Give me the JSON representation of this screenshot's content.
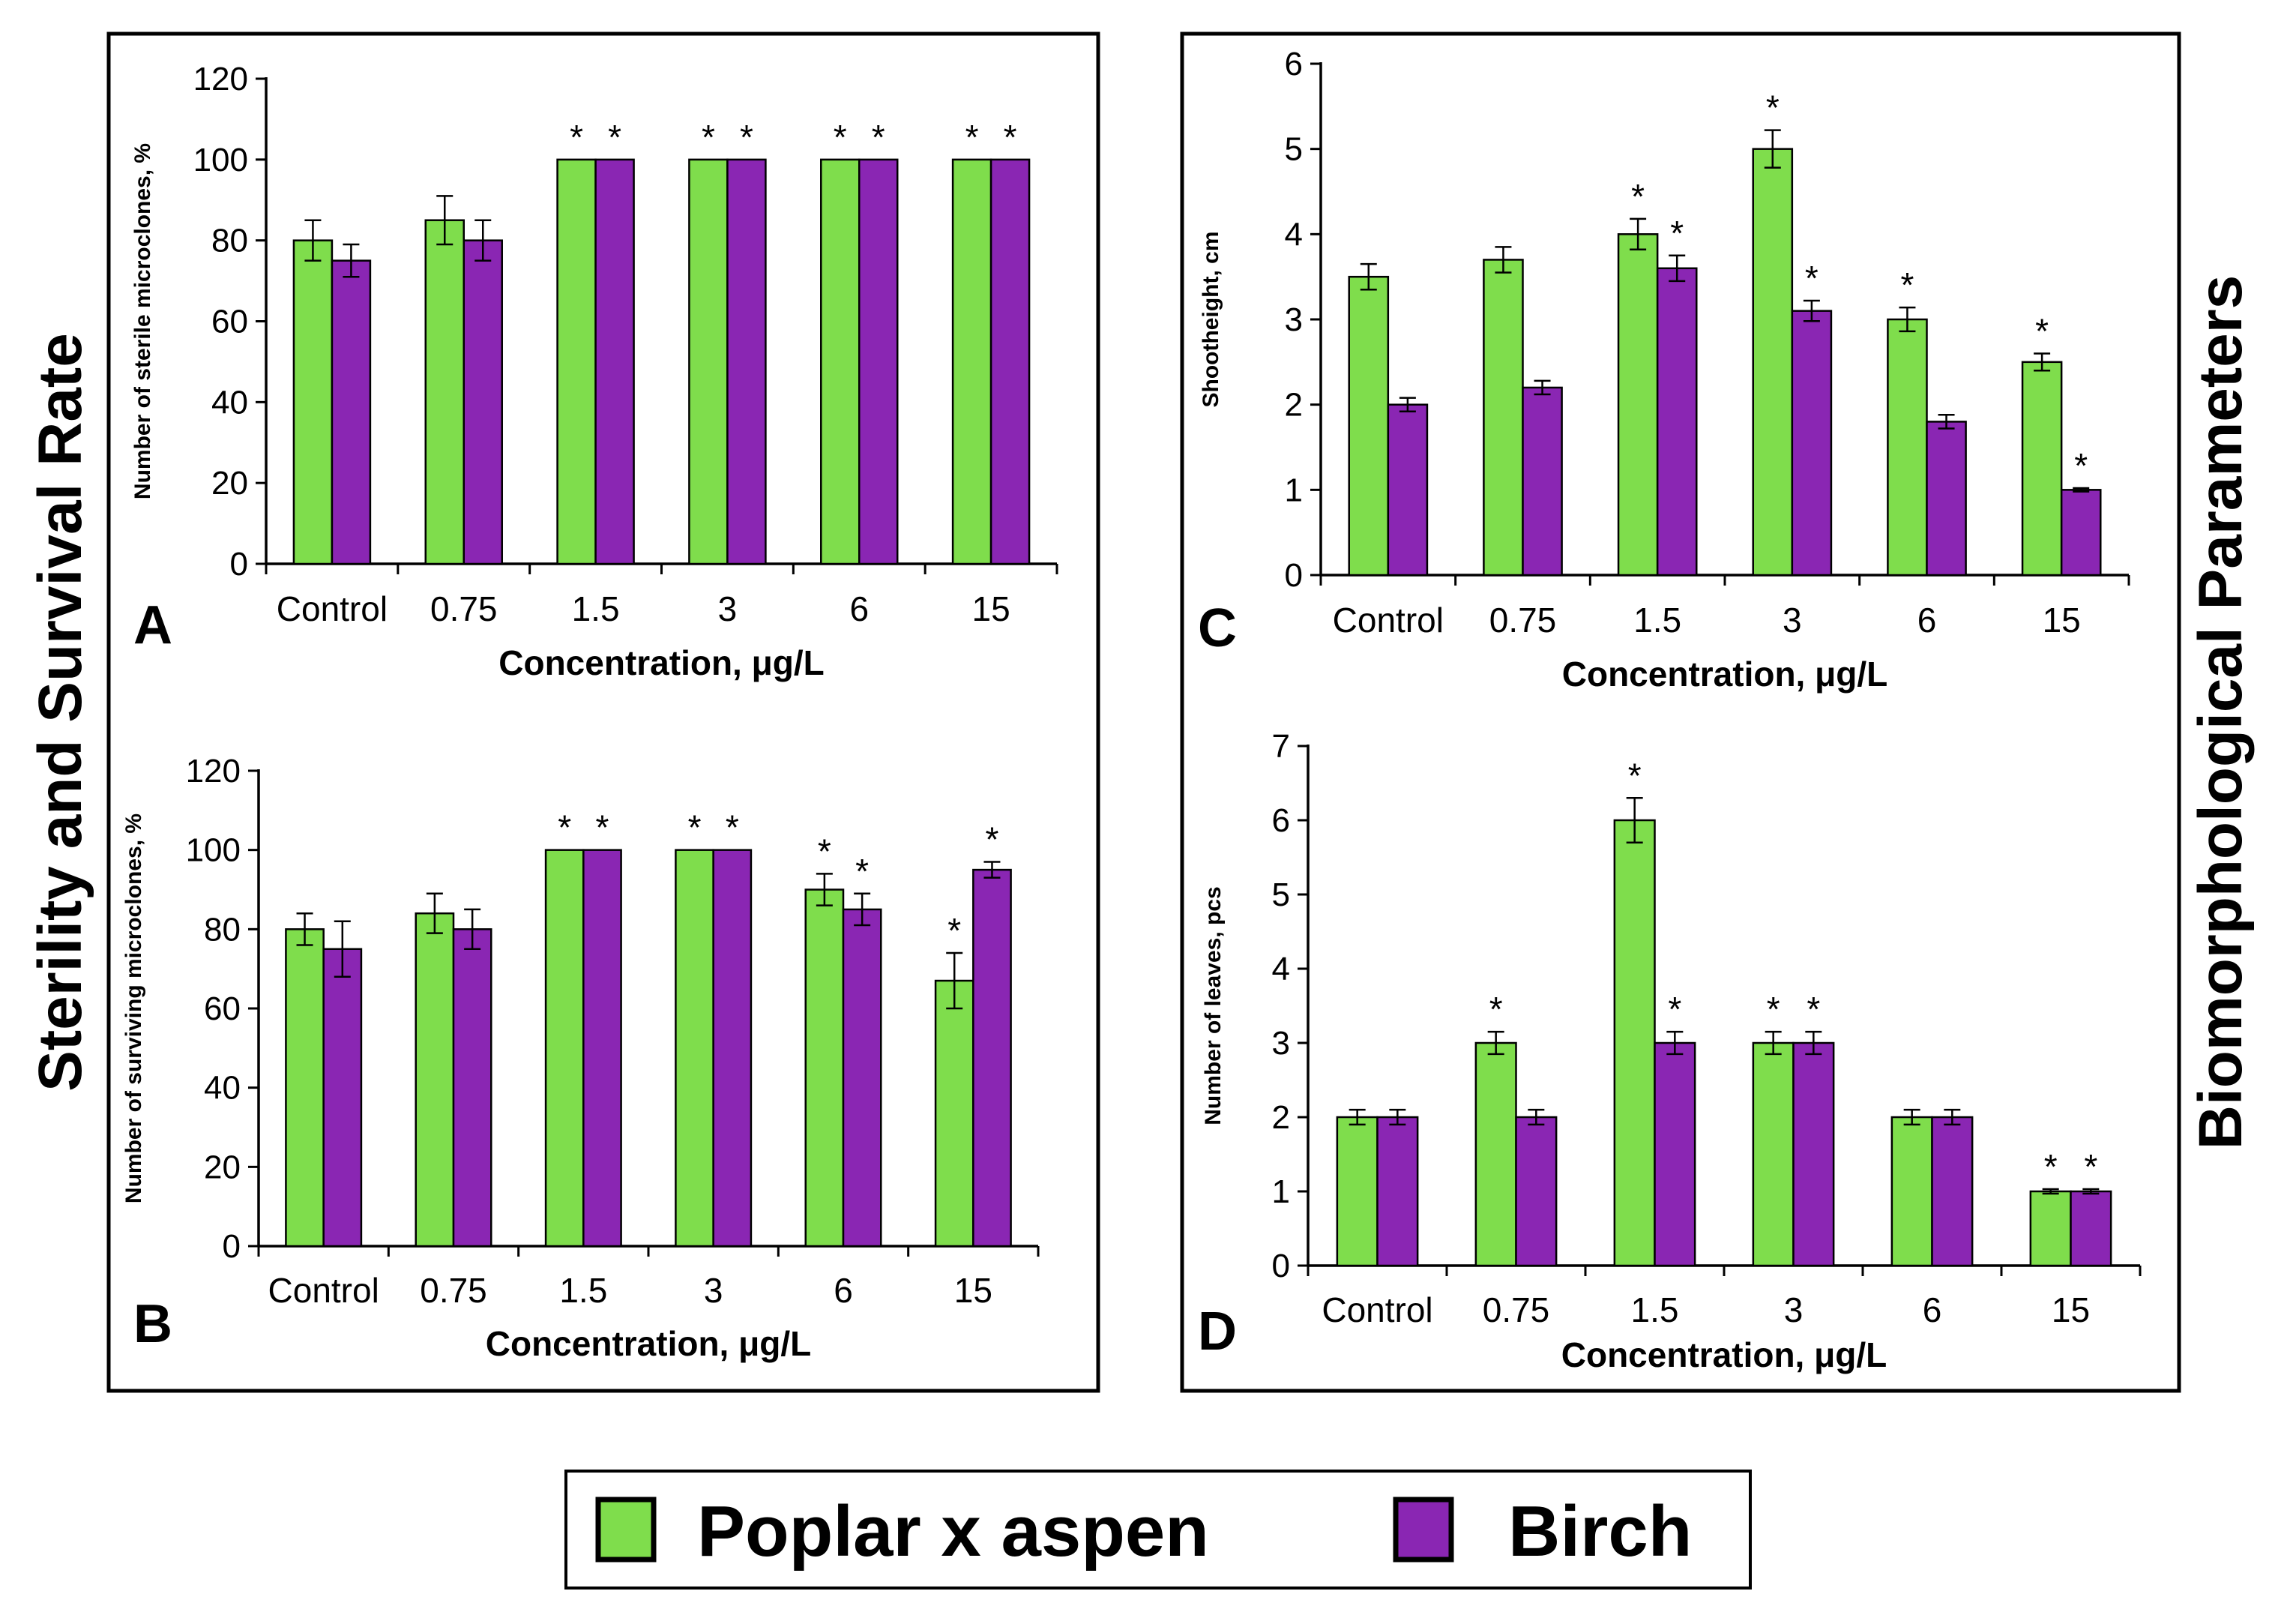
{
  "colors": {
    "poplar": "#7fdd4c",
    "birch": "#8a26b3"
  },
  "side_titles": {
    "left": "Sterility and Survival Rate",
    "right": "Biomorphological Parameters"
  },
  "legend": [
    {
      "key": "poplar",
      "label": "Poplar x aspen"
    },
    {
      "key": "birch",
      "label": "Birch"
    }
  ],
  "chart_data": [
    {
      "id": "A",
      "panel_letter": "A",
      "type": "bar",
      "categories": [
        "Control",
        "0.75",
        "1.5",
        "3",
        "6",
        "15"
      ],
      "xlabel": "Concentration, μg/L",
      "ylabel": "Number of sterile microclones, %",
      "ylim": [
        0,
        120
      ],
      "yticks": [
        "0",
        "20",
        "40",
        "60",
        "80",
        "100",
        "120"
      ],
      "series": [
        {
          "name": "Poplar x aspen",
          "key": "poplar",
          "values": [
            80,
            85,
            100,
            100,
            100,
            100
          ],
          "errors": [
            5,
            6,
            0,
            0,
            0,
            0
          ],
          "stars": [
            false,
            false,
            true,
            true,
            true,
            true
          ]
        },
        {
          "name": "Birch",
          "key": "birch",
          "values": [
            75,
            80,
            100,
            100,
            100,
            100
          ],
          "errors": [
            4,
            5,
            0,
            0,
            0,
            0
          ],
          "stars": [
            false,
            false,
            true,
            true,
            true,
            true
          ]
        }
      ],
      "star_symbol": "*"
    },
    {
      "id": "B",
      "panel_letter": "B",
      "type": "bar",
      "categories": [
        "Control",
        "0.75",
        "1.5",
        "3",
        "6",
        "15"
      ],
      "xlabel": "Concentration, μg/L",
      "ylabel": "Number of surviving microclones, %",
      "ylim": [
        0,
        120
      ],
      "yticks": [
        "0",
        "20",
        "40",
        "60",
        "80",
        "100",
        "120"
      ],
      "series": [
        {
          "name": "Poplar x aspen",
          "key": "poplar",
          "values": [
            80,
            84,
            100,
            100,
            90,
            67
          ],
          "errors": [
            4,
            5,
            0,
            0,
            4,
            7
          ],
          "stars": [
            false,
            false,
            true,
            true,
            true,
            true
          ]
        },
        {
          "name": "Birch",
          "key": "birch",
          "values": [
            75,
            80,
            100,
            100,
            85,
            95
          ],
          "errors": [
            7,
            5,
            0,
            0,
            4,
            2
          ],
          "stars": [
            false,
            false,
            true,
            true,
            true,
            true
          ]
        }
      ],
      "star_symbol": "*"
    },
    {
      "id": "C",
      "panel_letter": "C",
      "type": "bar",
      "categories": [
        "Control",
        "0.75",
        "1.5",
        "3",
        "6",
        "15"
      ],
      "xlabel": "Concentration, μg/L",
      "ylabel": "Shootheight, cm",
      "ylim": [
        0,
        6
      ],
      "yticks": [
        "0",
        "1",
        "2",
        "3",
        "4",
        "5",
        "6"
      ],
      "series": [
        {
          "name": "Poplar x aspen",
          "key": "poplar",
          "values": [
            3.5,
            3.7,
            4.0,
            5.0,
            3.0,
            2.5
          ],
          "errors": [
            0.15,
            0.15,
            0.18,
            0.22,
            0.14,
            0.1
          ],
          "stars": [
            false,
            false,
            true,
            true,
            true,
            true
          ]
        },
        {
          "name": "Birch",
          "key": "birch",
          "values": [
            2.0,
            2.2,
            3.6,
            3.1,
            1.8,
            1.0
          ],
          "errors": [
            0.08,
            0.08,
            0.15,
            0.12,
            0.08,
            0.02
          ],
          "stars": [
            false,
            false,
            true,
            true,
            false,
            true
          ]
        }
      ],
      "star_symbol": "*"
    },
    {
      "id": "D",
      "panel_letter": "D",
      "type": "bar",
      "categories": [
        "Control",
        "0.75",
        "1.5",
        "3",
        "6",
        "15"
      ],
      "xlabel": "Concentration, μg/L",
      "ylabel": "Number of leaves, pcs",
      "ylim": [
        0,
        7
      ],
      "yticks": [
        "0",
        "1",
        "2",
        "3",
        "4",
        "5",
        "6",
        "7"
      ],
      "series": [
        {
          "name": "Poplar x aspen",
          "key": "poplar",
          "values": [
            2,
            3,
            6,
            3,
            2,
            1
          ],
          "errors": [
            0.1,
            0.15,
            0.3,
            0.15,
            0.1,
            0.03
          ],
          "stars": [
            false,
            true,
            true,
            true,
            false,
            true
          ]
        },
        {
          "name": "Birch",
          "key": "birch",
          "values": [
            2,
            2,
            3,
            3,
            2,
            1
          ],
          "errors": [
            0.1,
            0.1,
            0.15,
            0.15,
            0.1,
            0.03
          ],
          "stars": [
            false,
            false,
            true,
            true,
            false,
            true
          ]
        }
      ],
      "star_symbol": "*"
    }
  ]
}
